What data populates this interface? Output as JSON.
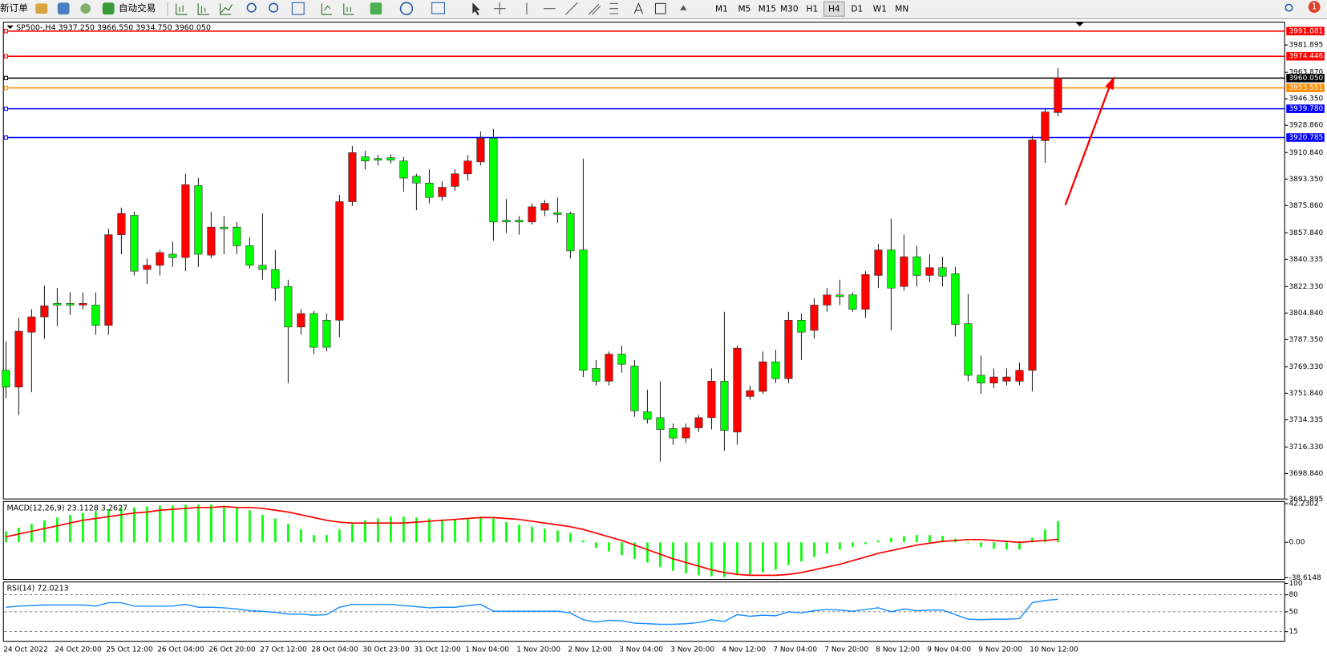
{
  "toolbar": {
    "new_order": "新订单",
    "auto_trading": "自动交易",
    "timeframes": [
      "M1",
      "M5",
      "M15",
      "M30",
      "H1",
      "H4",
      "D1",
      "W1",
      "MN"
    ],
    "active_timeframe": "H4",
    "notifications": 1
  },
  "chart_data": [
    {
      "type": "candlestick",
      "title": "SP500-,H4  3937.250 3966.550 3934.750 3960.050",
      "up_color": "#ff0000",
      "down_color": "#00ff00",
      "categories": [
        "24 Oct 2022",
        null,
        null,
        null,
        "24 Oct 20:00",
        null,
        null,
        null,
        "25 Oct 12:00",
        null,
        null,
        null,
        "26 Oct 04:00",
        null,
        null,
        null,
        "26 Oct 20:00",
        null,
        null,
        null,
        "27 Oct 12:00",
        null,
        null,
        null,
        "28 Oct 04:00",
        null,
        null,
        null,
        "30 Oct 23:00",
        null,
        null,
        null,
        "31 Oct 12:00",
        null,
        null,
        null,
        "1 Nov 04:00",
        null,
        null,
        null,
        "1 Nov 20:00",
        null,
        null,
        null,
        "2 Nov 12:00",
        null,
        null,
        null,
        "3 Nov 04:00",
        null,
        null,
        null,
        "3 Nov 20:00",
        null,
        null,
        null,
        "4 Nov 12:00",
        null,
        null,
        null,
        "7 Nov 04:00",
        null,
        null,
        null,
        "7 Nov 20:00",
        null,
        null,
        null,
        "8 Nov 12:00",
        null,
        null,
        null,
        "9 Nov 04:00",
        null,
        null,
        null,
        "9 Nov 20:00",
        null,
        null,
        null,
        "10 Nov 12:00",
        null,
        null
      ],
      "open": [
        3767.0,
        3755.9,
        3792.2,
        3802.3,
        3811.2,
        3811.2,
        3810.1,
        3810.1,
        3796.7,
        3856.6,
        3869.4,
        3833.6,
        3836.4,
        3843.7,
        3841.5,
        3889.0,
        3843.1,
        3861.6,
        3861.6,
        3849.3,
        3836.4,
        3833.6,
        3822.4,
        3795.6,
        3804.5,
        3800.1,
        3800.1,
        3878.4,
        3908.0,
        3906.9,
        3907.5,
        3905.3,
        3895.2,
        3890.7,
        3881.7,
        3888.5,
        3896.8,
        3904.7,
        3920.3,
        3866.1,
        3866.1,
        3865.0,
        3872.8,
        3871.1,
        3870.6,
        3846.5,
        3768.2,
        3759.8,
        3777.7,
        3769.8,
        3739.6,
        3735.7,
        3728.5,
        3722.3,
        3729.0,
        3735.7,
        3759.8,
        3726.2,
        3749.7,
        3753.1,
        3772.6,
        3761.5,
        3800.1,
        3793.4,
        3810.1,
        3816.8,
        3816.8,
        3807.3,
        3829.7,
        3846.5,
        3822.4,
        3842.0,
        3829.7,
        3834.8,
        3830.8,
        3797.8,
        3763.7,
        3758.6,
        3759.8,
        3759.8,
        3767.0,
        3918.7,
        3937.25
      ],
      "high": [
        3786.1,
        3801.7,
        3807.3,
        3823.0,
        3821.3,
        3818.5,
        3818.5,
        3818.5,
        3860.5,
        3874.5,
        3871.7,
        3840.9,
        3846.5,
        3852.1,
        3896.8,
        3894.0,
        3871.7,
        3868.9,
        3865.0,
        3854.9,
        3870.6,
        3846.5,
        3826.9,
        3807.3,
        3806.2,
        3804.5,
        3882.9,
        3915.3,
        3912.0,
        3909.2,
        3909.7,
        3908.0,
        3896.8,
        3899.7,
        3891.8,
        3899.7,
        3909.2,
        3924.8,
        3926.5,
        3880.1,
        3868.9,
        3877.3,
        3879.5,
        3881.2,
        3871.7,
        3906.9,
        3773.8,
        3779.4,
        3783.3,
        3773.8,
        3754.2,
        3759.8,
        3731.8,
        3731.8,
        3737.4,
        3768.2,
        3805.7,
        3783.3,
        3757.0,
        3779.4,
        3780.5,
        3805.7,
        3804.5,
        3814.6,
        3821.3,
        3826.9,
        3818.5,
        3832.5,
        3850.4,
        3867.2,
        3856.6,
        3849.3,
        3843.7,
        3842.0,
        3835.3,
        3817.4,
        3776.6,
        3768.2,
        3768.2,
        3772.1,
        3922.0,
        3939.9,
        3966.55
      ],
      "low": [
        3748.6,
        3737.4,
        3752.5,
        3787.8,
        3796.2,
        3803.4,
        3807.3,
        3790.5,
        3790.5,
        3843.7,
        3829.7,
        3824.1,
        3829.7,
        3835.3,
        3832.5,
        3835.3,
        3840.9,
        3843.7,
        3843.7,
        3834.2,
        3826.9,
        3812.9,
        3758.6,
        3790.5,
        3777.7,
        3779.4,
        3788.9,
        3875.6,
        3899.7,
        3902.4,
        3903.6,
        3885.1,
        3872.8,
        3877.3,
        3879.0,
        3885.7,
        3892.4,
        3902.4,
        3852.6,
        3857.7,
        3856.6,
        3863.3,
        3868.9,
        3864.4,
        3840.9,
        3762.6,
        3757.0,
        3757.0,
        3765.4,
        3736.3,
        3731.8,
        3706.6,
        3717.8,
        3718.9,
        3726.2,
        3727.9,
        3713.9,
        3717.8,
        3747.5,
        3751.4,
        3758.6,
        3758.6,
        3773.8,
        3787.8,
        3805.7,
        3810.1,
        3805.7,
        3801.7,
        3821.3,
        3793.4,
        3819.6,
        3822.4,
        3825.2,
        3822.4,
        3789.4,
        3759.8,
        3751.4,
        3755.3,
        3757.0,
        3757.0,
        3753.1,
        3904.1,
        3934.75
      ],
      "close": [
        3755.9,
        3792.8,
        3802.3,
        3809.6,
        3810.1,
        3810.1,
        3811.2,
        3796.7,
        3856.6,
        3870.6,
        3832.5,
        3836.4,
        3844.8,
        3841.5,
        3889.6,
        3843.7,
        3861.6,
        3860.5,
        3849.3,
        3836.4,
        3833.6,
        3821.3,
        3795.6,
        3804.5,
        3782.2,
        3782.2,
        3878.4,
        3910.8,
        3905.3,
        3905.8,
        3905.8,
        3894.0,
        3890.7,
        3881.2,
        3887.9,
        3896.8,
        3905.3,
        3920.3,
        3865.0,
        3865.0,
        3865.0,
        3875.0,
        3877.3,
        3870.0,
        3845.9,
        3767.0,
        3759.8,
        3777.7,
        3771.0,
        3740.2,
        3734.6,
        3727.9,
        3722.3,
        3729.0,
        3735.7,
        3759.8,
        3727.3,
        3781.6,
        3753.6,
        3772.6,
        3761.5,
        3800.1,
        3792.2,
        3810.1,
        3816.8,
        3815.7,
        3807.3,
        3830.3,
        3846.5,
        3821.3,
        3842.0,
        3829.7,
        3834.8,
        3829.2,
        3797.3,
        3763.7,
        3758.6,
        3762.6,
        3762.6,
        3767.0,
        3919.2,
        3937.7,
        3960.05
      ],
      "ylim": [
        3682.0,
        3995.9
      ],
      "yticks": [
        {
          "value": 3981.895,
          "label": "3981.895"
        },
        {
          "value": 3963.87,
          "label": "3963.870"
        },
        {
          "value": 3946.35,
          "label": "3946.350"
        },
        {
          "value": 3928.86,
          "label": "3928.860"
        },
        {
          "value": 3910.84,
          "label": "3910.840"
        },
        {
          "value": 3893.35,
          "label": "3893.350"
        },
        {
          "value": 3875.86,
          "label": "3875.860"
        },
        {
          "value": 3857.84,
          "label": "3857.840"
        },
        {
          "value": 3840.335,
          "label": "3840.335"
        },
        {
          "value": 3822.33,
          "label": "3822.330"
        },
        {
          "value": 3804.84,
          "label": "3804.840"
        },
        {
          "value": 3787.35,
          "label": "3787.350"
        },
        {
          "value": 3769.33,
          "label": "3769.330"
        },
        {
          "value": 3751.84,
          "label": "3751.840"
        },
        {
          "value": 3734.335,
          "label": "3734.335"
        },
        {
          "value": 3716.33,
          "label": "3716.330"
        },
        {
          "value": 3698.84,
          "label": "3698.840"
        },
        {
          "value": 3681.895,
          "label": "3681.895"
        }
      ],
      "levels": [
        {
          "value": 3991.081,
          "label": "3991.081",
          "color": "#ff0000"
        },
        {
          "value": 3974.446,
          "label": "3974.446",
          "color": "#ff0000"
        },
        {
          "value": 3960.05,
          "label": "3960.050",
          "color": "#000000"
        },
        {
          "value": 3953.551,
          "label": "3953.551",
          "color": "#ff8c00"
        },
        {
          "value": 3939.78,
          "label": "3939.780",
          "color": "#0000ff"
        },
        {
          "value": 3920.785,
          "label": "3920.785",
          "color": "#0000ff"
        }
      ]
    },
    {
      "type": "macd",
      "title": "MACD(12,26,9) 23.1128 3.2627",
      "histogram": {
        "color": "#00ff00",
        "values": [
          12,
          16,
          20,
          24,
          27,
          30,
          32,
          34,
          36,
          37,
          38,
          39,
          40,
          40,
          41,
          41,
          41,
          40,
          38,
          35,
          30,
          26,
          20,
          14,
          8,
          8,
          14,
          20,
          24,
          26,
          28,
          28,
          27,
          26,
          25,
          25,
          26,
          28,
          26,
          22,
          19,
          17,
          15,
          13,
          10,
          2,
          -6,
          -10,
          -14,
          -18,
          -22,
          -27,
          -31,
          -34,
          -36,
          -37,
          -38,
          -36,
          -35,
          -33,
          -30,
          -25,
          -21,
          -16,
          -12,
          -8,
          -5,
          -2,
          2,
          5,
          7,
          8,
          8,
          7,
          4,
          -1,
          -5,
          -7,
          -8,
          -8,
          5,
          14,
          23.1128
        ]
      },
      "signal": {
        "color": "#ff0000",
        "values": [
          6,
          9,
          12,
          15,
          18,
          21,
          24,
          26,
          28,
          30,
          32,
          33,
          35,
          36,
          37,
          38,
          38,
          39,
          38,
          38,
          37,
          35,
          33,
          30,
          27,
          24,
          22,
          21,
          21,
          21,
          21,
          21,
          22,
          23,
          24,
          25,
          26,
          27,
          27,
          26,
          25,
          23,
          21,
          19,
          17,
          14,
          10,
          6,
          2,
          -3,
          -8,
          -13,
          -18,
          -22,
          -26,
          -30,
          -33,
          -35,
          -36,
          -36,
          -36,
          -35,
          -33,
          -30,
          -27,
          -24,
          -20,
          -16,
          -12,
          -9,
          -6,
          -3,
          -1,
          1,
          2,
          3,
          3,
          2,
          1,
          0,
          1,
          2,
          3.2627
        ]
      },
      "ylim": [
        -40.5,
        44.5
      ],
      "yticks": [
        42.2302,
        {
          "value": 0,
          "label": "0.00"
        },
        -38.6148
      ]
    },
    {
      "type": "line",
      "title": "RSI(14) 72.0213",
      "color": "#1e90ff",
      "values": [
        58,
        60,
        61,
        62,
        62,
        62,
        62,
        60,
        66,
        66,
        60,
        60,
        60,
        60,
        63,
        58,
        58,
        57,
        55,
        52,
        51,
        49,
        46,
        46,
        44,
        45,
        58,
        63,
        63,
        63,
        63,
        61,
        59,
        57,
        58,
        58,
        61,
        63,
        51,
        51,
        51,
        51,
        51,
        51,
        48,
        36,
        32,
        35,
        34,
        30,
        29,
        28,
        28,
        29,
        31,
        36,
        33,
        45,
        42,
        44,
        43,
        50,
        48,
        52,
        54,
        53,
        51,
        54,
        57,
        50,
        55,
        52,
        53,
        53,
        45,
        37,
        36,
        37,
        37,
        38,
        66,
        70,
        72.0213
      ],
      "ylim": [
        0,
        100
      ],
      "yticks": [
        100,
        80,
        50,
        15
      ]
    }
  ]
}
